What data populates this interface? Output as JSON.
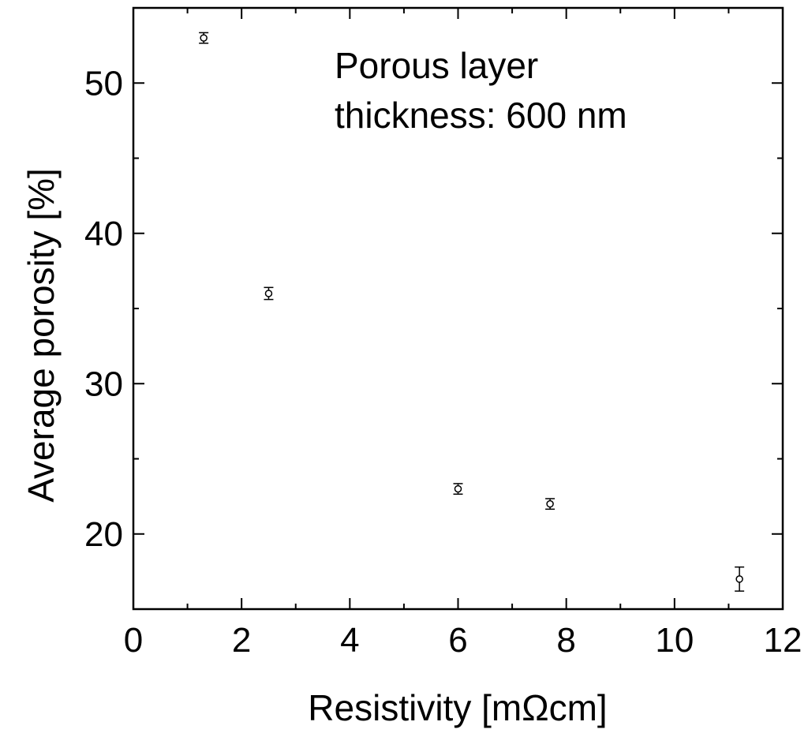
{
  "chart_data": {
    "type": "scatter",
    "title": "",
    "xlabel": "Resistivity [mΩcm]",
    "ylabel": "Average porosity [%]",
    "xlim": [
      0,
      12
    ],
    "ylim": [
      15,
      55
    ],
    "x_ticks": [
      0,
      2,
      4,
      6,
      8,
      10,
      12
    ],
    "y_ticks": [
      20,
      30,
      40,
      50
    ],
    "grid": false,
    "legend": "none",
    "annotation": [
      "Porous layer",
      "thickness: 600 nm"
    ],
    "series": [
      {
        "marker": "open-circle",
        "points": [
          {
            "x": 1.3,
            "y": 53.0,
            "err": 0.35
          },
          {
            "x": 2.5,
            "y": 36.0,
            "err": 0.4
          },
          {
            "x": 6.0,
            "y": 23.0,
            "err": 0.35
          },
          {
            "x": 7.7,
            "y": 22.0,
            "err": 0.35
          },
          {
            "x": 11.2,
            "y": 17.0,
            "err": 0.8
          }
        ]
      }
    ],
    "colors": {
      "axis": "#000000",
      "marker": "#000000",
      "background": "#ffffff"
    }
  }
}
